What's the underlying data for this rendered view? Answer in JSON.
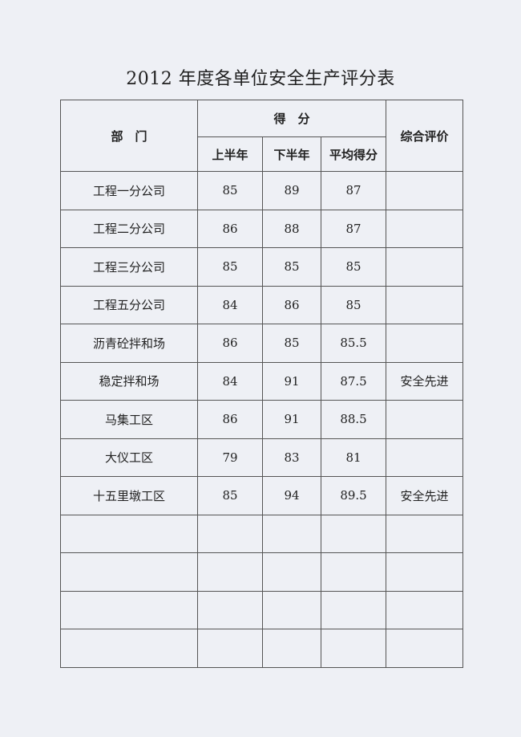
{
  "title": "2012 年度各单位安全生产评分表",
  "headers": {
    "department": "部　门",
    "score": "得　分",
    "first_half": "上半年",
    "second_half": "下半年",
    "average": "平均得分",
    "overall": "综合评价"
  },
  "rows": [
    {
      "dept": "工程一分公司",
      "h1": "85",
      "h2": "89",
      "avg": "87",
      "eval": ""
    },
    {
      "dept": "工程二分公司",
      "h1": "86",
      "h2": "88",
      "avg": "87",
      "eval": ""
    },
    {
      "dept": "工程三分公司",
      "h1": "85",
      "h2": "85",
      "avg": "85",
      "eval": ""
    },
    {
      "dept": "工程五分公司",
      "h1": "84",
      "h2": "86",
      "avg": "85",
      "eval": ""
    },
    {
      "dept": "沥青砼拌和场",
      "h1": "86",
      "h2": "85",
      "avg": "85.5",
      "eval": ""
    },
    {
      "dept": "稳定拌和场",
      "h1": "84",
      "h2": "91",
      "avg": "87.5",
      "eval": "安全先进"
    },
    {
      "dept": "马集工区",
      "h1": "86",
      "h2": "91",
      "avg": "88.5",
      "eval": ""
    },
    {
      "dept": "大仪工区",
      "h1": "79",
      "h2": "83",
      "avg": "81",
      "eval": ""
    },
    {
      "dept": "十五里墩工区",
      "h1": "85",
      "h2": "94",
      "avg": "89.5",
      "eval": "安全先进"
    },
    {
      "dept": "",
      "h1": "",
      "h2": "",
      "avg": "",
      "eval": ""
    },
    {
      "dept": "",
      "h1": "",
      "h2": "",
      "avg": "",
      "eval": ""
    },
    {
      "dept": "",
      "h1": "",
      "h2": "",
      "avg": "",
      "eval": ""
    },
    {
      "dept": "",
      "h1": "",
      "h2": "",
      "avg": "",
      "eval": ""
    }
  ]
}
